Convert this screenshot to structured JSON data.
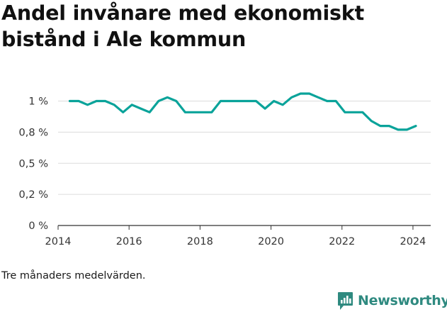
{
  "title": "Andel invånare med ekonomiskt bistånd i Ale kommun",
  "note": "Tre månaders medelvärden.",
  "brand": {
    "name": "Newsworthy",
    "icon": "newsworthy-logo-icon",
    "color": "#2f8a80"
  },
  "chart_data": {
    "type": "line",
    "title": "Andel invånare med ekonomiskt bistånd i Ale kommun",
    "xlabel": "",
    "ylabel": "",
    "x_ticks": [
      2014,
      2016,
      2018,
      2020,
      2022,
      2024
    ],
    "y_ticks": [
      {
        "value": 0,
        "label": "0 %"
      },
      {
        "value": 0.25,
        "label": "0,2 %"
      },
      {
        "value": 0.5,
        "label": "0,5 %"
      },
      {
        "value": 0.75,
        "label": "0,8 %"
      },
      {
        "value": 1,
        "label": "1 %"
      }
    ],
    "xlim": [
      2014,
      2024.5
    ],
    "ylim": [
      0,
      1.06
    ],
    "grid": "horizontal",
    "color": "#0aa39a",
    "series": [
      {
        "x": [
          2014.33,
          2014.58,
          2014.83,
          2015.08,
          2015.33,
          2015.58,
          2015.83,
          2016.08,
          2016.33,
          2016.58,
          2016.83,
          2017.08,
          2017.33,
          2017.58,
          2017.83,
          2018.08,
          2018.33,
          2018.58,
          2018.83,
          2019.08,
          2019.33,
          2019.58,
          2019.83,
          2020.08,
          2020.33,
          2020.58,
          2020.83,
          2021.08,
          2021.33,
          2021.58,
          2021.83,
          2022.08,
          2022.33,
          2022.58,
          2022.83,
          2023.08,
          2023.33,
          2023.58,
          2023.83,
          2024.08
        ],
        "y": [
          1.0,
          1.0,
          0.97,
          1.0,
          1.0,
          0.97,
          0.91,
          0.97,
          0.94,
          0.91,
          1.0,
          1.03,
          1.0,
          0.91,
          0.91,
          0.91,
          0.91,
          1.0,
          1.0,
          1.0,
          1.0,
          1.0,
          0.94,
          1.0,
          0.97,
          1.03,
          1.06,
          1.06,
          1.03,
          1.0,
          1.0,
          0.91,
          0.91,
          0.91,
          0.84,
          0.8,
          0.8,
          0.77,
          0.77,
          0.8
        ]
      }
    ]
  }
}
